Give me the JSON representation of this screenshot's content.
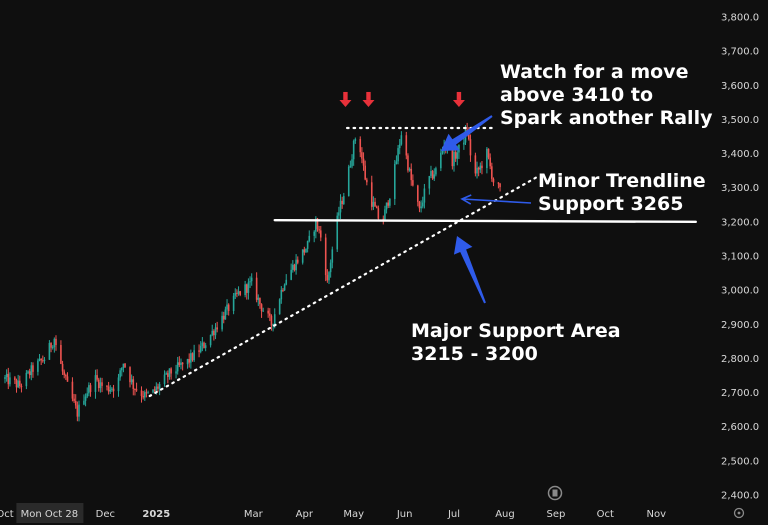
{
  "chart_data": {
    "type": "candlestick",
    "y_ticks": [
      2400,
      2500,
      2600,
      2700,
      2800,
      2900,
      3000,
      3100,
      3200,
      3300,
      3400,
      3500,
      3600,
      3700,
      3800
    ],
    "y_tick_labels": [
      "2,400.0",
      "2,500.0",
      "2,600.0",
      "2,700.0",
      "2,800.0",
      "2,900.0",
      "3,000.0",
      "3,100.0",
      "3,200.0",
      "3,300.0",
      "3,400.0",
      "3,500.0",
      "3,600.0",
      "3,700.0",
      "3,800.0"
    ],
    "ylim": [
      2380,
      3840
    ],
    "x_ticks": [
      {
        "label": "Oct",
        "date": "2024-10-01"
      },
      {
        "label": "Mon Oct 28",
        "date": "2024-10-28",
        "highlight": true
      },
      {
        "label": "Dec",
        "date": "2024-12-01"
      },
      {
        "label": "2025",
        "date": "2025-01-01",
        "bold": true
      },
      {
        "label": "Mar",
        "date": "2025-03-01"
      },
      {
        "label": "Apr",
        "date": "2025-04-01"
      },
      {
        "label": "May",
        "date": "2025-05-01"
      },
      {
        "label": "Jun",
        "date": "2025-06-01"
      },
      {
        "label": "Jul",
        "date": "2025-07-01"
      },
      {
        "label": "Aug",
        "date": "2025-08-01"
      },
      {
        "label": "Sep",
        "date": "2025-09-01"
      },
      {
        "label": "Oct",
        "date": "2025-10-01"
      },
      {
        "label": "Nov",
        "date": "2025-11-01"
      }
    ],
    "price_path": [
      [
        "2024-10-01",
        2740
      ],
      [
        "2024-10-10",
        2720
      ],
      [
        "2024-10-18",
        2770
      ],
      [
        "2024-10-25",
        2800
      ],
      [
        "2024-10-31",
        2860
      ],
      [
        "2024-11-05",
        2760
      ],
      [
        "2024-11-10",
        2690
      ],
      [
        "2024-11-14",
        2640
      ],
      [
        "2024-11-18",
        2690
      ],
      [
        "2024-11-25",
        2740
      ],
      [
        "2024-12-01",
        2710
      ],
      [
        "2024-12-08",
        2720
      ],
      [
        "2024-12-12",
        2790
      ],
      [
        "2024-12-18",
        2720
      ],
      [
        "2024-12-25",
        2690
      ],
      [
        "2024-12-30",
        2700
      ],
      [
        "2025-01-10",
        2760
      ],
      [
        "2025-01-20",
        2790
      ],
      [
        "2025-01-30",
        2840
      ],
      [
        "2025-02-10",
        2920
      ],
      [
        "2025-02-20",
        2990
      ],
      [
        "2025-02-28",
        3020
      ],
      [
        "2025-03-05",
        2960
      ],
      [
        "2025-03-12",
        2900
      ],
      [
        "2025-03-20",
        3030
      ],
      [
        "2025-03-28",
        3090
      ],
      [
        "2025-04-03",
        3130
      ],
      [
        "2025-04-08",
        3200
      ],
      [
        "2025-04-12",
        3140
      ],
      [
        "2025-04-15",
        3020
      ],
      [
        "2025-04-18",
        3120
      ],
      [
        "2025-04-22",
        3230
      ],
      [
        "2025-04-26",
        3300
      ],
      [
        "2025-04-30",
        3400
      ],
      [
        "2025-05-03",
        3470
      ],
      [
        "2025-05-08",
        3330
      ],
      [
        "2025-05-12",
        3260
      ],
      [
        "2025-05-18",
        3190
      ],
      [
        "2025-05-24",
        3300
      ],
      [
        "2025-05-30",
        3460
      ],
      [
        "2025-06-05",
        3320
      ],
      [
        "2025-06-10",
        3230
      ],
      [
        "2025-06-15",
        3320
      ],
      [
        "2025-06-20",
        3350
      ],
      [
        "2025-06-25",
        3430
      ],
      [
        "2025-06-30",
        3380
      ],
      [
        "2025-07-05",
        3420
      ],
      [
        "2025-07-09",
        3470
      ],
      [
        "2025-07-13",
        3330
      ],
      [
        "2025-07-17",
        3360
      ],
      [
        "2025-07-21",
        3400
      ],
      [
        "2025-07-25",
        3320
      ],
      [
        "2025-07-29",
        3290
      ]
    ],
    "lines": {
      "resistance": {
        "from": [
          "2025-04-27",
          3475
        ],
        "to": [
          "2025-07-25",
          3475
        ],
        "style": "dotted"
      },
      "major_support": {
        "from": [
          "2025-03-14",
          3205
        ],
        "to": [
          "2025-11-25",
          3200
        ],
        "style": "solid"
      },
      "rising_trendline": {
        "from": [
          "2024-12-28",
          2690
        ],
        "to": [
          "2025-08-20",
          3330
        ],
        "style": "dotted"
      }
    },
    "top_markers": [
      {
        "date": "2025-04-26",
        "price": 3475
      },
      {
        "date": "2025-05-10",
        "price": 3475
      },
      {
        "date": "2025-07-04",
        "price": 3475
      }
    ],
    "colors": {
      "up": "#26a69a",
      "down": "#ef5350",
      "marker": "#e8313a",
      "arrow": "#2f5bea",
      "background": "#0f0f0f"
    },
    "annotations": [
      {
        "lines": [
          "Watch for a move",
          "above 3410 to",
          "Spark another Rally"
        ]
      },
      {
        "lines": [
          "Minor Trendline",
          "Support 3265"
        ]
      },
      {
        "lines": [
          "Major Support Area",
          "3215 - 3200"
        ]
      }
    ]
  },
  "ui": {
    "tv_logo_icon": "tradingview-logo-icon",
    "settings_icon": "gear-icon"
  }
}
